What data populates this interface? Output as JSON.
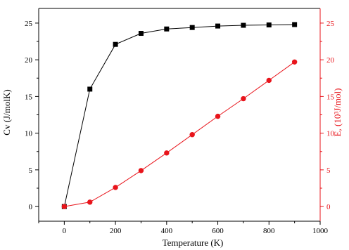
{
  "chart_data": {
    "type": "line",
    "xlabel": "Temperature (K)",
    "ylabel_left": "Cv (J/molK)",
    "ylabel_right": "E, (10³J/mol)",
    "xlim": [
      -100,
      1000
    ],
    "ylim_left": [
      -2,
      27
    ],
    "ylim_right": [
      -2,
      27
    ],
    "x_ticks": [
      0,
      200,
      400,
      600,
      800,
      1000
    ],
    "y_ticks_left": [
      0,
      5,
      10,
      15,
      20,
      25
    ],
    "y_ticks_right": [
      0,
      5,
      10,
      15,
      20,
      25
    ],
    "grid": false,
    "legend": "none",
    "series": [
      {
        "axis": "left",
        "marker": "square",
        "color": "#000000",
        "x": [
          0,
          100,
          200,
          300,
          400,
          500,
          600,
          700,
          800,
          900
        ],
        "values": [
          0,
          16.0,
          22.1,
          23.6,
          24.2,
          24.4,
          24.6,
          24.7,
          24.75,
          24.8
        ]
      },
      {
        "axis": "right",
        "marker": "circle",
        "color": "#e8141b",
        "x": [
          0,
          100,
          200,
          300,
          400,
          500,
          600,
          700,
          800,
          900
        ],
        "values": [
          0,
          0.6,
          2.6,
          4.9,
          7.3,
          9.8,
          12.3,
          14.7,
          17.2,
          19.7
        ]
      }
    ]
  }
}
